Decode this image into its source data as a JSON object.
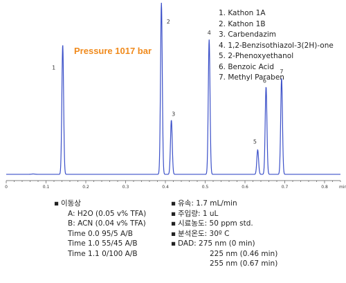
{
  "chart_data": {
    "type": "line",
    "title": "",
    "annotation": "Pressure 1017 bar",
    "x_unit": "min",
    "xlim": [
      0,
      0.84
    ],
    "x_major_ticks": [
      0,
      0.1,
      0.2,
      0.3,
      0.4,
      0.5,
      0.6,
      0.7,
      0.8
    ],
    "x_tick_labels": [
      "0",
      "0.1",
      "0.2",
      "0.3",
      "0.4",
      "0.5",
      "0.6",
      "0.7",
      "0.8"
    ],
    "ylim": [
      0,
      100
    ],
    "baseline": 2,
    "series": [
      {
        "peaks": [
          {
            "label": "",
            "rt": 0.068,
            "height": 2.2
          },
          {
            "label": "1",
            "rt": 0.142,
            "height": 76
          },
          {
            "label": "2",
            "rt": 0.39,
            "height": 100
          },
          {
            "label": "3",
            "rt": 0.415,
            "height": 33
          },
          {
            "label": "4",
            "rt": 0.51,
            "height": 79
          },
          {
            "label": "5",
            "rt": 0.632,
            "height": 16
          },
          {
            "label": "6",
            "rt": 0.653,
            "height": 52
          },
          {
            "label": "7",
            "rt": 0.692,
            "height": 57
          }
        ]
      }
    ]
  },
  "legend": [
    "1. Kathon 1A",
    "2. Kathon 1B",
    "3. Carbendazim",
    "4. 1,2-Benzisothiazol-3(2H)-one",
    "5. 2-Phenoxyethanol",
    "6. Benzoic Acid",
    "7. Methyl Paraben"
  ],
  "conditions_left": {
    "heading": "이동상",
    "lines": [
      "A: H2O (0.05 v% TFA)",
      "B: ACN (0.04 v% TFA)",
      "Time 0.0 95/5 A/B",
      "Time 1.0 55/45 A/B",
      "Time 1.1 0/100 A/B"
    ]
  },
  "conditions_right": {
    "items": [
      "유속: 1.7 mL/min",
      "주입량: 1 uL",
      "시료농도: 50 ppm std.",
      "분석온도: 30º C",
      "DAD: 275 nm (0 min)"
    ],
    "extra_lines": [
      "225 nm (0.46 min)",
      "255 nm (0.67 min)"
    ]
  },
  "colors": {
    "trace": "#3a4fc8",
    "axis": "#555555",
    "annotation": "#f08a1c"
  }
}
